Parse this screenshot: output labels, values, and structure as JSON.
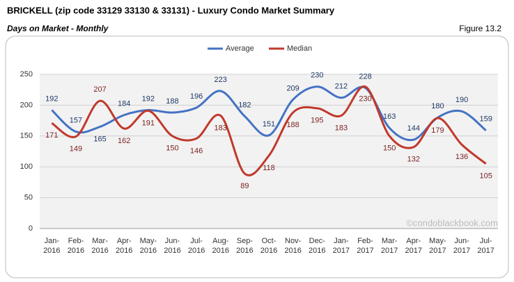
{
  "chart_data": {
    "type": "line",
    "title": "BRICKELL (zip code 33129 33130 & 33131) - Luxury Condo Market Summary",
    "subtitle": "Days on Market - Monthly",
    "figure_label": "Figure 13.2",
    "watermark": "©condoblackbook.com",
    "categories": [
      "Jan-2016",
      "Feb-2016",
      "Mar-2016",
      "Apr-2016",
      "May-2016",
      "Jun-2016",
      "Jul-2016",
      "Aug-2016",
      "Sep-2016",
      "Oct-2016",
      "Nov-2016",
      "Dec-2016",
      "Jan-2017",
      "Feb-2017",
      "Mar-2017",
      "Apr-2017",
      "May-2017",
      "Jun-2017",
      "Jul-2017"
    ],
    "series": [
      {
        "name": "Average",
        "color": "#4472c4",
        "label_color": "#1f3864",
        "values": [
          192,
          157,
          165,
          184,
          192,
          188,
          196,
          223,
          182,
          151,
          209,
          230,
          212,
          228,
          163,
          144,
          180,
          190,
          159
        ]
      },
      {
        "name": "Median",
        "color": "#c0392b",
        "label_color": "#7b1e1e",
        "values": [
          171,
          149,
          207,
          162,
          191,
          150,
          146,
          183,
          89,
          118,
          188,
          195,
          183,
          230,
          150,
          132,
          179,
          136,
          105
        ]
      }
    ],
    "ylim": [
      0,
      250
    ],
    "yticks": [
      0,
      50,
      100,
      150,
      200,
      250
    ],
    "grid": true
  }
}
